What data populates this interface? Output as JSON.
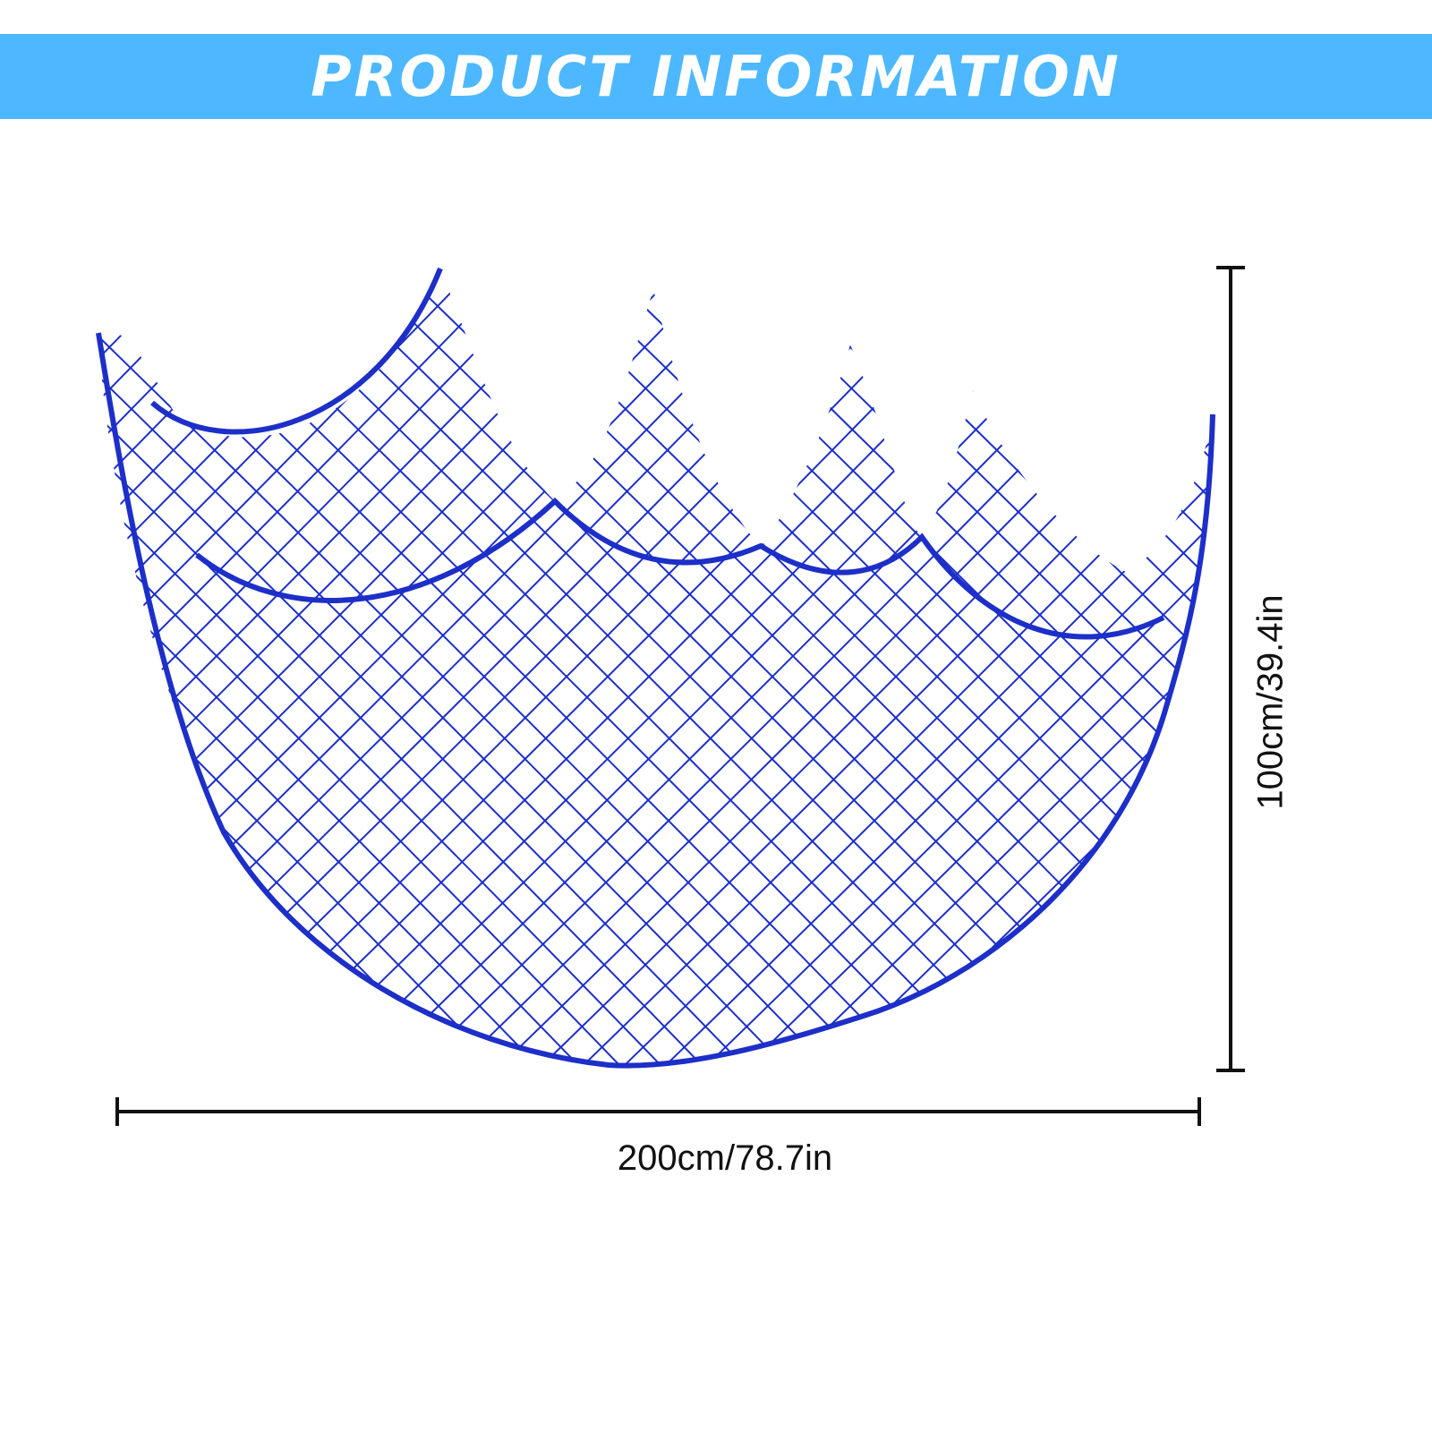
{
  "banner": {
    "title": "PRODUCT INFORMATION",
    "color": "#4db8ff"
  },
  "product": {
    "net_color": "#1d2fc8"
  },
  "dimensions": {
    "width_label": "200cm/78.7in",
    "height_label": "100cm/39.4in"
  }
}
